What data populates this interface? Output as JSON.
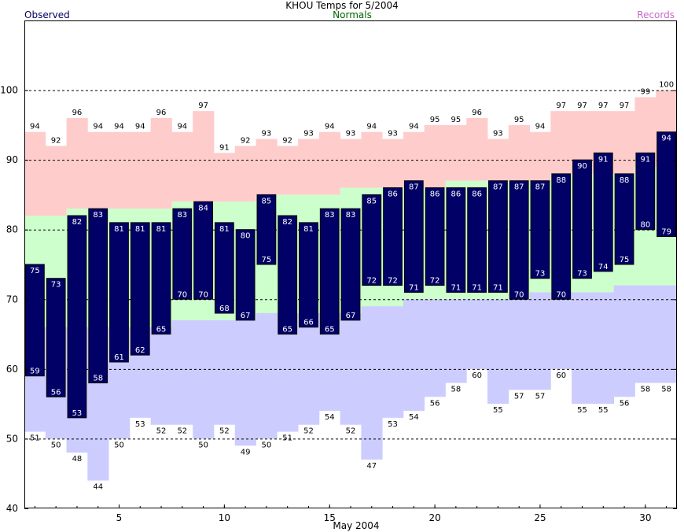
{
  "colors": {
    "observed": "#000066",
    "normals_band": "#ccffcc",
    "record_high_band": "#ffcccc",
    "record_low_band": "#ccccff",
    "observed_label": "#000066",
    "normals_label": "#006600",
    "records_label": "#cc66cc"
  },
  "chart_data": {
    "type": "bar",
    "title": "KHOU Temps for 5/2004",
    "xlabel": "May 2004",
    "ylabel": "",
    "legend": {
      "observed": "Observed",
      "normals": "Normals",
      "records": "Records"
    },
    "legend_placement": "top",
    "grid": "dashed horizontal",
    "xlim": [
      1,
      31
    ],
    "ylim": [
      40,
      110
    ],
    "x_ticks": [
      5,
      10,
      15,
      20,
      25,
      30
    ],
    "y_ticks": [
      40,
      50,
      60,
      70,
      80,
      90,
      100
    ],
    "days": [
      1,
      2,
      3,
      4,
      5,
      6,
      7,
      8,
      9,
      10,
      11,
      12,
      13,
      14,
      15,
      16,
      17,
      18,
      19,
      20,
      21,
      22,
      23,
      24,
      25,
      26,
      27,
      28,
      29,
      30,
      31
    ],
    "series": [
      {
        "name": "Observed",
        "high": [
          75,
          73,
          82,
          83,
          81,
          81,
          81,
          83,
          84,
          81,
          80,
          85,
          82,
          81,
          83,
          83,
          85,
          86,
          87,
          86,
          86,
          86,
          87,
          87,
          87,
          88,
          90,
          91,
          88,
          91,
          94
        ],
        "low": [
          59,
          56,
          53,
          58,
          61,
          62,
          65,
          70,
          70,
          68,
          67,
          75,
          65,
          66,
          65,
          67,
          72,
          72,
          71,
          72,
          71,
          71,
          71,
          70,
          73,
          70,
          73,
          74,
          75,
          80,
          79
        ]
      },
      {
        "name": "Normals",
        "high": [
          82,
          82,
          83,
          83,
          83,
          83,
          83,
          84,
          84,
          84,
          84,
          85,
          85,
          85,
          85,
          86,
          86,
          86,
          86,
          86,
          87,
          87,
          87,
          87,
          87,
          88,
          88,
          88,
          88,
          89,
          89
        ],
        "low": [
          66,
          66,
          66,
          66,
          66,
          66,
          66,
          67,
          67,
          67,
          67,
          68,
          68,
          68,
          68,
          68,
          69,
          69,
          70,
          70,
          70,
          70,
          70,
          70,
          71,
          71,
          71,
          71,
          72,
          72,
          72
        ]
      },
      {
        "name": "Records",
        "high": [
          94,
          92,
          96,
          94,
          94,
          94,
          96,
          94,
          97,
          91,
          92,
          93,
          92,
          93,
          94,
          93,
          94,
          93,
          94,
          95,
          95,
          96,
          93,
          95,
          94,
          97,
          97,
          97,
          97,
          99,
          100
        ],
        "low": [
          51,
          50,
          48,
          44,
          50,
          53,
          52,
          52,
          50,
          52,
          49,
          50,
          51,
          52,
          54,
          52,
          47,
          53,
          54,
          56,
          58,
          60,
          55,
          57,
          57,
          60,
          55,
          55,
          56,
          58,
          58
        ]
      }
    ]
  }
}
